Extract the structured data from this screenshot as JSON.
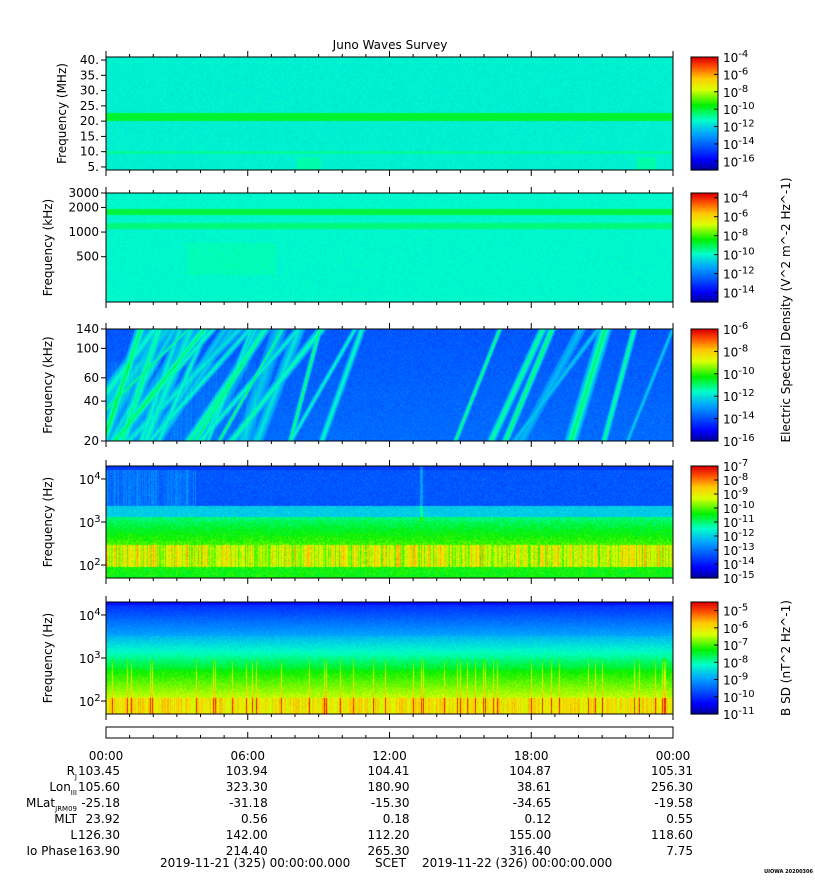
{
  "chart_data": {
    "type": "heatmap",
    "title": "Juno Waves Survey",
    "panels": [
      {
        "id": "p1",
        "ylabel": "Frequency (MHz)",
        "yscale": "linear",
        "yrange": [
          4,
          41
        ],
        "yticks": [
          {
            "v": 5,
            "label": "5."
          },
          {
            "v": 10,
            "label": "10."
          },
          {
            "v": 15,
            "label": "15."
          },
          {
            "v": 20,
            "label": "20."
          },
          {
            "v": 25,
            "label": "25."
          },
          {
            "v": 30,
            "label": "30."
          },
          {
            "v": 35,
            "label": "35."
          },
          {
            "v": 40,
            "label": "40."
          }
        ],
        "colorbar": {
          "range": [
            -17,
            -4
          ],
          "ticks": [
            -4,
            -6,
            -8,
            -10,
            -12,
            -14,
            -16
          ]
        },
        "pattern": "bands_mhz"
      },
      {
        "id": "p2",
        "ylabel": "Frequency (kHz)",
        "yscale": "log",
        "yrange": [
          140,
          3000
        ],
        "yticks": [
          {
            "v": 500,
            "label": "500"
          },
          {
            "v": 1000,
            "label": "1000"
          },
          {
            "v": 2000,
            "label": "2000"
          },
          {
            "v": 3000,
            "label": "3000"
          }
        ],
        "colorbar": {
          "range": [
            -15,
            -3.5
          ],
          "ticks": [
            -4,
            -6,
            -8,
            -10,
            -12,
            -14
          ]
        },
        "pattern": "bands_khz"
      },
      {
        "id": "p3",
        "ylabel": "Frequency (kHz)",
        "yscale": "log",
        "yrange": [
          20,
          140
        ],
        "yticks": [
          {
            "v": 20,
            "label": "20"
          },
          {
            "v": 40,
            "label": "40"
          },
          {
            "v": 60,
            "label": "60"
          },
          {
            "v": 100,
            "label": "100"
          },
          {
            "v": 140,
            "label": "140"
          }
        ],
        "colorbar": {
          "range": [
            -16,
            -6
          ],
          "ticks": [
            -6,
            -8,
            -10,
            -12,
            -14,
            -16
          ]
        },
        "pattern": "streaks"
      },
      {
        "id": "p4",
        "ylabel": "Frequency (Hz)",
        "yscale": "log",
        "yrange": [
          50,
          20000
        ],
        "yticks": [
          {
            "v": 100,
            "label": "10^2"
          },
          {
            "v": 1000,
            "label": "10^3"
          },
          {
            "v": 10000,
            "label": "10^4"
          }
        ],
        "colorbar": {
          "range": [
            -15,
            -7
          ],
          "ticks": [
            -7,
            -8,
            -9,
            -10,
            -11,
            -12,
            -13,
            -14,
            -15
          ]
        },
        "pattern": "electric_low"
      },
      {
        "id": "p5",
        "ylabel": "Frequency (Hz)",
        "yscale": "log",
        "yrange": [
          50,
          20000
        ],
        "yticks": [
          {
            "v": 100,
            "label": "10^2"
          },
          {
            "v": 1000,
            "label": "10^3"
          },
          {
            "v": 10000,
            "label": "10^4"
          }
        ],
        "colorbar": {
          "range": [
            -11,
            -4.5
          ],
          "ticks": [
            -5,
            -6,
            -7,
            -8,
            -9,
            -10,
            -11
          ]
        },
        "pattern": "magnetic"
      }
    ],
    "colorbar_label_electric": "Electric Spectral Density (V^2 m^-2 Hz^-1)",
    "colorbar_label_magnetic": "B SD (nT^2 Hz^-1)",
    "xaxis": {
      "range_hours": [
        0,
        24
      ],
      "major_ticks": [
        "00:00",
        "06:00",
        "12:00",
        "18:00",
        "00:00"
      ]
    },
    "ephemeris": [
      {
        "label": "R_J",
        "values": [
          "103.45",
          "103.94",
          "104.41",
          "104.87",
          "105.31"
        ]
      },
      {
        "label": "Lon_III",
        "values": [
          "105.60",
          "323.30",
          "180.90",
          "38.61",
          "256.30"
        ]
      },
      {
        "label": "MLat_JRM09",
        "values": [
          "-25.18",
          "-31.18",
          "-15.30",
          "-34.65",
          "-19.58"
        ]
      },
      {
        "label": "MLT",
        "values": [
          "23.92",
          "0.56",
          "0.18",
          "0.12",
          "0.55"
        ]
      },
      {
        "label": "L",
        "values": [
          "126.30",
          "142.00",
          "112.20",
          "155.00",
          "118.60"
        ]
      },
      {
        "label": "Io Phase",
        "values": [
          "163.90",
          "214.40",
          "265.30",
          "316.40",
          "7.75"
        ]
      }
    ],
    "footer": {
      "start": "2019-11-21 (325) 00:00:00.000",
      "center": "SCET",
      "end": "2019-11-22 (326) 00:00:00.000"
    },
    "credit": "UIOWA 20200306"
  }
}
